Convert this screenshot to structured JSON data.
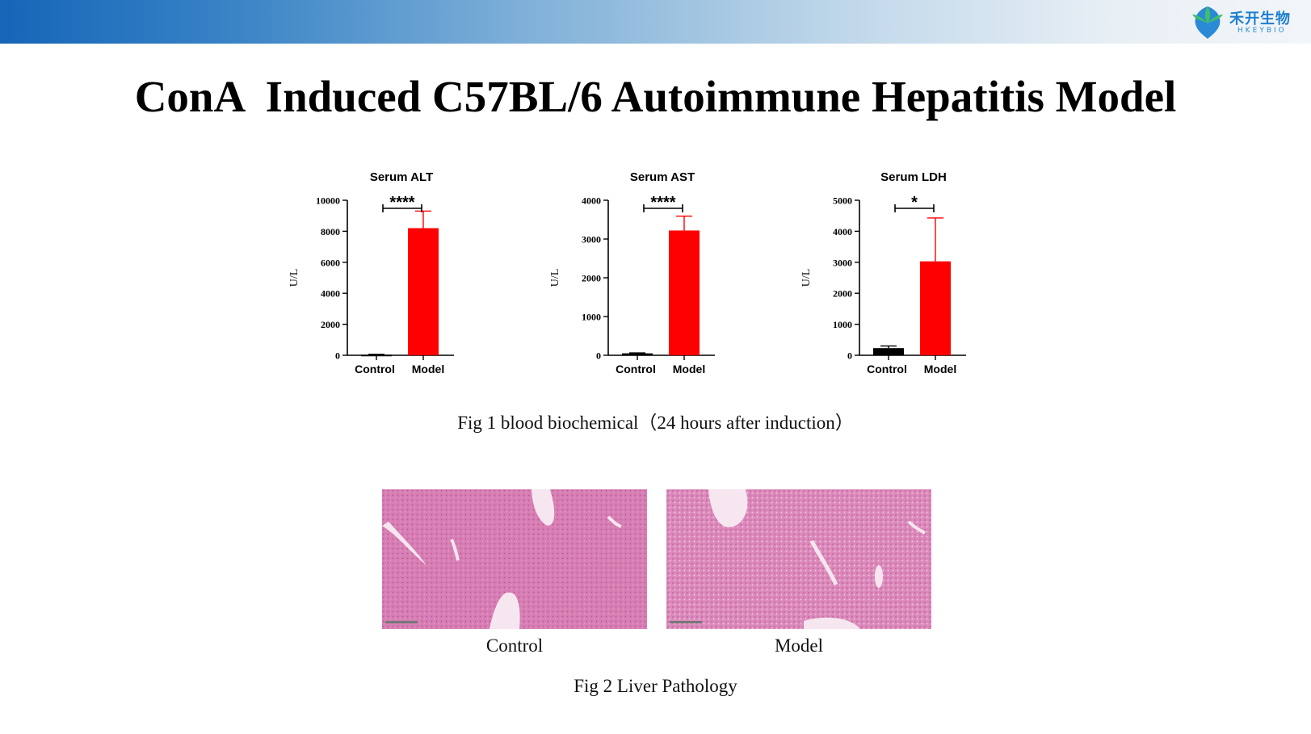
{
  "slide": {
    "title": "ConA  Induced C57BL/6 Autoimmune Hepatitis Model",
    "logo": {
      "name": "禾开生物",
      "sub": "HKEYBIO"
    },
    "accent_color": "#ff0000",
    "bar_colors": {
      "Control": "#000000",
      "Model": "#ff0000"
    }
  },
  "fig1": {
    "caption": "Fig 1 blood biochemical（24 hours after induction）"
  },
  "fig2": {
    "caption": "Fig 2 Liver Pathology",
    "panels": [
      {
        "label": "Control"
      },
      {
        "label": "Model"
      }
    ]
  },
  "chart_data": [
    {
      "type": "bar",
      "title": "Serum ALT",
      "ylabel": "U/L",
      "categories": [
        "Control",
        "Model"
      ],
      "values": [
        40,
        8200
      ],
      "errors": [
        20,
        1100
      ],
      "ylim": [
        0,
        10000
      ],
      "yticks": [
        "0",
        "2000",
        "4000",
        "6000",
        "8000",
        "10000"
      ],
      "significance": "****",
      "grid": false
    },
    {
      "type": "bar",
      "title": "Serum AST",
      "ylabel": "U/L",
      "categories": [
        "Control",
        "Model"
      ],
      "values": [
        50,
        3220
      ],
      "errors": [
        10,
        370
      ],
      "ylim": [
        0,
        4000
      ],
      "yticks": [
        "0",
        "1000",
        "2000",
        "3000",
        "4000"
      ],
      "significance": "****",
      "grid": false
    },
    {
      "type": "bar",
      "title": "Serum LDH",
      "ylabel": "U/L",
      "categories": [
        "Control",
        "Model"
      ],
      "values": [
        230,
        3030
      ],
      "errors": [
        70,
        1400
      ],
      "ylim": [
        0,
        5000
      ],
      "yticks": [
        "0",
        "1000",
        "2000",
        "3000",
        "4000",
        "5000"
      ],
      "significance": "*",
      "grid": false
    }
  ]
}
